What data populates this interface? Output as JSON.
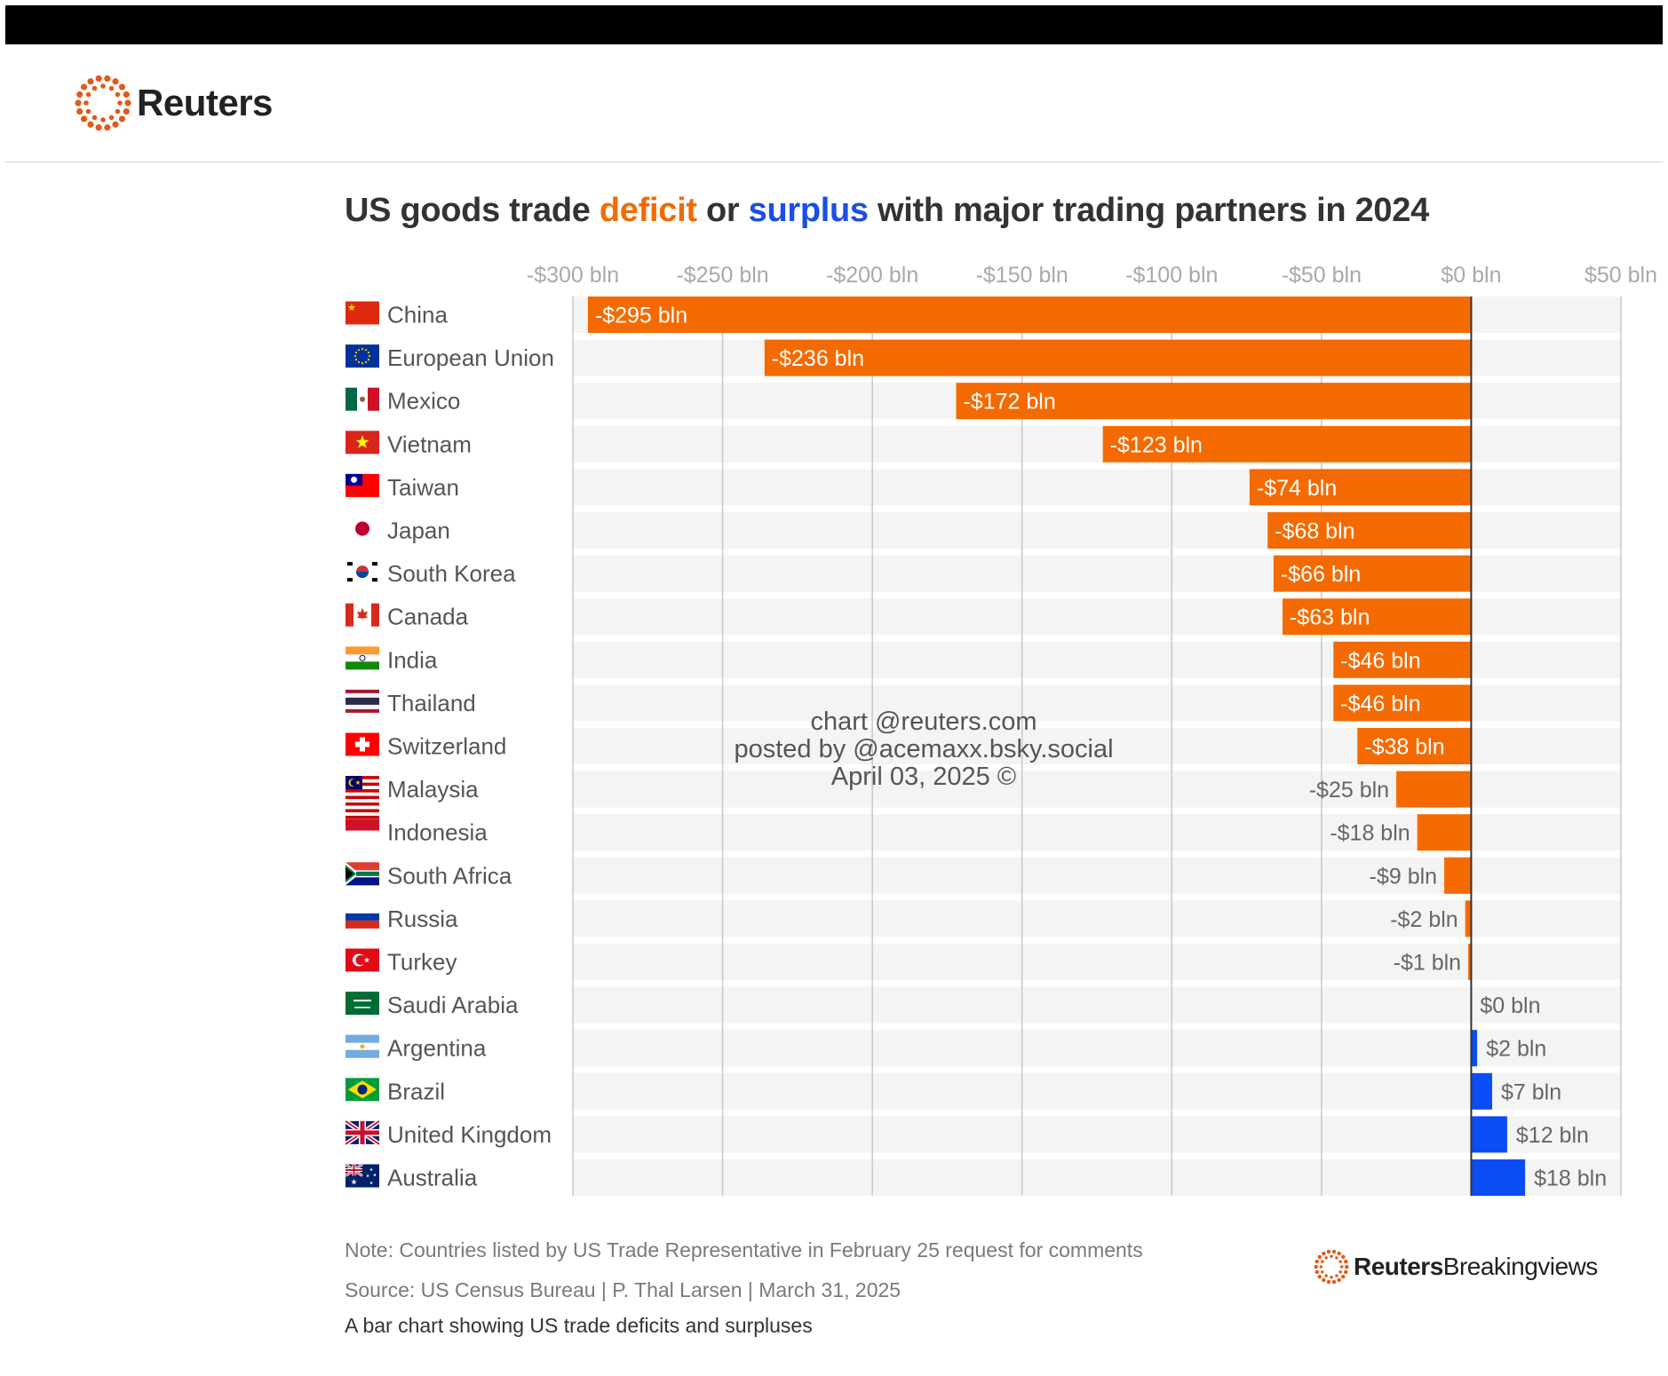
{
  "brand": {
    "name": "Reuters"
  },
  "title": {
    "prefix": "US goods trade ",
    "deficit": "deficit",
    "middle": " or ",
    "surplus": "surplus",
    "suffix": " with major trading partners in 2024"
  },
  "colors": {
    "deficit": "#f56a00",
    "surplus": "#0a4df5",
    "accent_logo": "#e05a1c",
    "row_band": "#f4f4f4"
  },
  "chart_data": {
    "type": "bar",
    "orientation": "horizontal",
    "title": "US goods trade deficit or surplus with major trading partners in 2024",
    "xlim": [
      -300,
      50
    ],
    "ticks": [
      -300,
      -250,
      -200,
      -150,
      -100,
      -50,
      0,
      50
    ],
    "tick_labels": [
      "-$300 bln",
      "-$250 bln",
      "-$200 bln",
      "-$150 bln",
      "-$100 bln",
      "-$50 bln",
      "$0 bln",
      "$50 bln"
    ],
    "grid": true,
    "categories": [
      "China",
      "European Union",
      "Mexico",
      "Vietnam",
      "Taiwan",
      "Japan",
      "South Korea",
      "Canada",
      "India",
      "Thailand",
      "Switzerland",
      "Malaysia",
      "Indonesia",
      "South Africa",
      "Russia",
      "Turkey",
      "Saudi Arabia",
      "Argentina",
      "Brazil",
      "United Kingdom",
      "Australia"
    ],
    "flag_icons": [
      "china-flag-icon",
      "eu-flag-icon",
      "mexico-flag-icon",
      "vietnam-flag-icon",
      "taiwan-flag-icon",
      "japan-flag-icon",
      "south-korea-flag-icon",
      "canada-flag-icon",
      "india-flag-icon",
      "thailand-flag-icon",
      "switzerland-flag-icon",
      "malaysia-flag-icon",
      "indonesia-flag-icon",
      "south-africa-flag-icon",
      "russia-flag-icon",
      "turkey-flag-icon",
      "saudi-arabia-flag-icon",
      "argentina-flag-icon",
      "brazil-flag-icon",
      "united-kingdom-flag-icon",
      "australia-flag-icon"
    ],
    "values": [
      -295,
      -236,
      -172,
      -123,
      -74,
      -68,
      -66,
      -63,
      -46,
      -46,
      -38,
      -25,
      -18,
      -9,
      -2,
      -1,
      0,
      2,
      7,
      12,
      18
    ],
    "value_labels": [
      "-$295 bln",
      "-$236 bln",
      "-$172 bln",
      "-$123 bln",
      "-$74 bln",
      "-$68 bln",
      "-$66 bln",
      "-$63 bln",
      "-$46 bln",
      "-$46 bln",
      "-$38 bln",
      "-$25 bln",
      "-$18 bln",
      "-$9 bln",
      "-$2 bln",
      "-$1 bln",
      "$0 bln",
      "$2 bln",
      "$7 bln",
      "$12 bln",
      "$18 bln"
    ],
    "unit": "bln"
  },
  "watermark": {
    "line1": "chart @reuters.com",
    "line2": "posted by @acemaxx.bsky.social",
    "line3": "April 03, 2025 ©"
  },
  "footer": {
    "note": "Note: Countries listed by US Trade Representative in February 25 request for comments",
    "source": "Source: US Census Bureau | P. Thal Larsen | March 31, 2025",
    "caption": "A bar chart showing US trade deficits and surpluses",
    "brand_bold": "Reuters",
    "brand_light": "Breakingviews"
  }
}
